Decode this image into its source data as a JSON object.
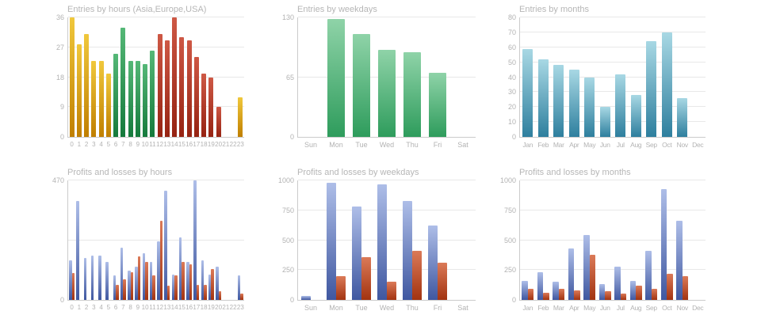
{
  "palette": {
    "gold": [
      "#F0C83C",
      "#C07F00"
    ],
    "green": [
      "#55B877",
      "#157A3C"
    ],
    "red": [
      "#CE5845",
      "#962312"
    ],
    "green2": [
      "#8FD3A8",
      "#2E9C5C"
    ],
    "teal": [
      "#A8D8E4",
      "#2E7F9E"
    ],
    "blue": [
      "#AEBEE8",
      "#3F57A0"
    ],
    "red2": [
      "#DB7A58",
      "#A23310"
    ]
  },
  "chart_data": [
    {
      "type": "bar",
      "title": "Entries by hours (Asia,Europe,USA)",
      "categories": [
        "0",
        "1",
        "2",
        "3",
        "4",
        "5",
        "6",
        "7",
        "8",
        "9",
        "10",
        "11",
        "12",
        "13",
        "14",
        "15",
        "16",
        "17",
        "18",
        "19",
        "20",
        "21",
        "22",
        "23"
      ],
      "values": [
        36,
        28,
        31,
        23,
        23,
        19,
        25,
        33,
        23,
        23,
        22,
        26,
        31,
        29,
        36,
        30,
        29,
        24,
        19,
        18,
        9,
        0,
        0,
        12
      ],
      "bar_color_keys": [
        "gold",
        "gold",
        "gold",
        "gold",
        "gold",
        "gold",
        "green",
        "green",
        "green",
        "green",
        "green",
        "green",
        "red",
        "red",
        "red",
        "red",
        "red",
        "red",
        "red",
        "red",
        "red",
        "gold",
        "gold",
        "gold"
      ],
      "ylim": [
        0,
        36
      ],
      "yticks": [
        0,
        9,
        18,
        27,
        36
      ],
      "grid": true,
      "legend": "none"
    },
    {
      "type": "bar",
      "title": "Entries by weekdays",
      "categories": [
        "Sun",
        "Mon",
        "Tue",
        "Wed",
        "Thu",
        "Fri",
        "Sat"
      ],
      "values": [
        0,
        128,
        112,
        95,
        92,
        70,
        0
      ],
      "color_key": "green2",
      "ylim": [
        0,
        130
      ],
      "yticks": [
        0,
        65,
        130
      ],
      "grid": true,
      "legend": "none"
    },
    {
      "type": "bar",
      "title": "Entries by months",
      "categories": [
        "Jan",
        "Feb",
        "Mar",
        "Apr",
        "May",
        "Jun",
        "Jul",
        "Aug",
        "Sep",
        "Oct",
        "Nov",
        "Dec"
      ],
      "values": [
        59,
        52,
        48,
        45,
        40,
        20,
        42,
        28,
        64,
        70,
        26,
        0
      ],
      "color_key": "teal",
      "ylim": [
        0,
        80
      ],
      "yticks": [
        0,
        10,
        20,
        30,
        40,
        50,
        60,
        70,
        80
      ],
      "grid": true,
      "legend": "none"
    },
    {
      "type": "bar",
      "title": "Profits and losses by hours",
      "categories": [
        "0",
        "1",
        "2",
        "3",
        "4",
        "5",
        "6",
        "7",
        "8",
        "9",
        "10",
        "11",
        "12",
        "13",
        "14",
        "15",
        "16",
        "17",
        "18",
        "19",
        "20",
        "21",
        "22",
        "23"
      ],
      "series": [
        {
          "name": "profits",
          "color_key": "blue",
          "values": [
            155,
            390,
            165,
            175,
            175,
            150,
            95,
            205,
            115,
            130,
            185,
            150,
            230,
            430,
            100,
            245,
            150,
            470,
            155,
            100,
            130,
            0,
            0,
            95
          ]
        },
        {
          "name": "losses",
          "color_key": "red2",
          "values": [
            105,
            0,
            0,
            0,
            0,
            0,
            60,
            80,
            110,
            170,
            150,
            95,
            310,
            55,
            95,
            150,
            140,
            60,
            60,
            120,
            35,
            0,
            0,
            25
          ]
        }
      ],
      "ylim": [
        0,
        470
      ],
      "yticks": [
        0,
        470
      ],
      "extra_gridlines": [
        235
      ],
      "grid": true,
      "legend": "none"
    },
    {
      "type": "bar",
      "title": "Profits and losses by weekdays",
      "categories": [
        "Sun",
        "Mon",
        "Tue",
        "Wed",
        "Thu",
        "Fri",
        "Sat"
      ],
      "series": [
        {
          "name": "profits",
          "color_key": "blue",
          "values": [
            30,
            980,
            780,
            970,
            830,
            620,
            0
          ]
        },
        {
          "name": "losses",
          "color_key": "red2",
          "values": [
            0,
            200,
            360,
            150,
            410,
            310,
            0
          ]
        }
      ],
      "ylim": [
        0,
        1000
      ],
      "yticks": [
        0,
        250,
        500,
        750,
        1000
      ],
      "grid": true,
      "legend": "none"
    },
    {
      "type": "bar",
      "title": "Profits and losses by months",
      "categories": [
        "Jan",
        "Feb",
        "Mar",
        "Apr",
        "May",
        "Jun",
        "Jul",
        "Aug",
        "Sep",
        "Oct",
        "Nov",
        "Dec"
      ],
      "series": [
        {
          "name": "profits",
          "color_key": "blue",
          "values": [
            160,
            230,
            150,
            430,
            540,
            130,
            280,
            160,
            410,
            930,
            660,
            0
          ]
        },
        {
          "name": "losses",
          "color_key": "red2",
          "values": [
            90,
            60,
            90,
            80,
            380,
            75,
            50,
            120,
            90,
            220,
            200,
            0
          ]
        }
      ],
      "ylim": [
        0,
        1000
      ],
      "yticks": [
        0,
        250,
        500,
        750,
        1000
      ],
      "grid": true,
      "legend": "none"
    }
  ]
}
